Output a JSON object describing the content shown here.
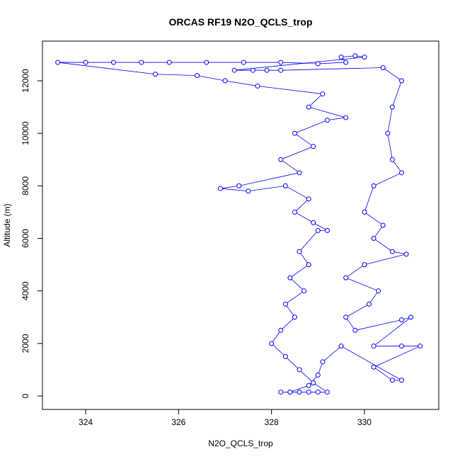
{
  "chart_data": {
    "type": "scatter",
    "lines": true,
    "title": "ORCAS RF19 N2O_QCLS_trop",
    "x_label": "N2O_QCLS_trop",
    "y_label": "Altitude (m)",
    "color": "#0000ff",
    "xlim": [
      323.07,
      331.6
    ],
    "ylim": [
      -512,
      13511
    ],
    "xticks": [
      324,
      326,
      328,
      330
    ],
    "yticks": [
      0,
      2000,
      4000,
      6000,
      8000,
      10000,
      12000
    ],
    "x": [
      328.2,
      328.4,
      328.6,
      328.8,
      329.0,
      329.2,
      328.9,
      328.6,
      328.3,
      328.0,
      328.2,
      328.5,
      328.3,
      328.7,
      328.4,
      328.8,
      328.6,
      329.0,
      329.2,
      328.9,
      328.5,
      328.8,
      328.3,
      327.5,
      326.9,
      327.3,
      328.6,
      328.2,
      328.9,
      328.5,
      329.2,
      329.6,
      328.8,
      329.1,
      327.7,
      327.0,
      326.4,
      325.5,
      323.4,
      324.0,
      324.6,
      325.2,
      325.8,
      326.6,
      327.4,
      328.2,
      329.0,
      329.6,
      329.5,
      329.8,
      330.0,
      327.2,
      327.6,
      327.9,
      328.2,
      330.4,
      330.8,
      330.6,
      330.5,
      330.6,
      330.8,
      330.2,
      330.0,
      330.4,
      330.2,
      330.6,
      330.9,
      330.0,
      329.6,
      330.3,
      330.1,
      329.6,
      329.8,
      330.8,
      331.0,
      330.2,
      330.8,
      331.2,
      330.2,
      330.6,
      330.8,
      329.5,
      329.1,
      329.0,
      328.8,
      328.4
    ],
    "y": [
      150,
      150,
      150,
      150,
      150,
      150,
      500,
      1000,
      1500,
      2000,
      2500,
      3000,
      3500,
      4000,
      4500,
      5000,
      5500,
      6300,
      6300,
      6600,
      7000,
      7500,
      8000,
      7800,
      7900,
      8000,
      8500,
      9000,
      9500,
      10000,
      10500,
      10600,
      11000,
      11500,
      11800,
      12000,
      12200,
      12250,
      12700,
      12700,
      12700,
      12700,
      12700,
      12700,
      12700,
      12700,
      12650,
      12700,
      12900,
      12950,
      12900,
      12400,
      12400,
      12400,
      12400,
      12500,
      12000,
      11000,
      10000,
      9000,
      8500,
      8000,
      7000,
      6500,
      6000,
      5500,
      5400,
      5000,
      4500,
      4000,
      3500,
      3000,
      2500,
      2900,
      3000,
      1900,
      1900,
      1900,
      1100,
      600,
      600,
      1900,
      1300,
      800,
      400,
      150
    ]
  }
}
